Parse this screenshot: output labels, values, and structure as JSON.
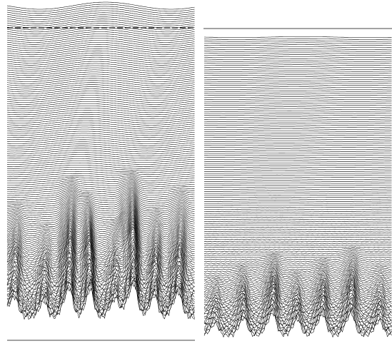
{
  "figure": {
    "description_panels": 2,
    "colors": {
      "background": "#ffffff",
      "traces": "#000000",
      "frame_lines": "#444444"
    },
    "panels": [
      {
        "name": "left",
        "trace_count": 150,
        "dashed_marker_line": true
      },
      {
        "name": "right",
        "trace_count": 150,
        "dashed_marker_line": false
      }
    ]
  }
}
